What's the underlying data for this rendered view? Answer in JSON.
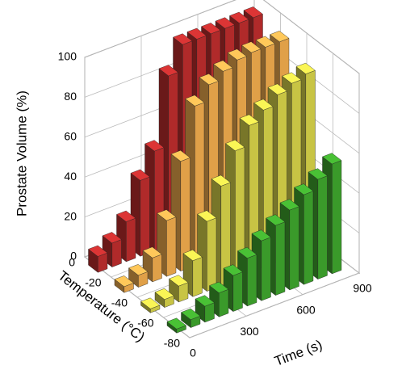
{
  "chart_data": {
    "type": "bar3d",
    "x_label": "Time (s)",
    "y_label": "Temperature (°C)",
    "z_label": "Prostate Volume (%)",
    "x": [
      0,
      75,
      150,
      225,
      300,
      375,
      450,
      525,
      600,
      675,
      750,
      825
    ],
    "series": [
      {
        "temperature": -10,
        "color": "#b02a2a",
        "values": [
          8,
          12,
          20,
          38,
          50,
          85,
          98,
          98,
          98,
          98,
          98,
          98
        ]
      },
      {
        "temperature": -30,
        "color": "#e0a048",
        "values": [
          3,
          6,
          12,
          28,
          55,
          80,
          88,
          92,
          95,
          96,
          96,
          96
        ]
      },
      {
        "temperature": -50,
        "color": "#c8c444",
        "values": [
          2,
          4,
          8,
          18,
          35,
          50,
          65,
          75,
          80,
          85,
          88,
          90
        ]
      },
      {
        "temperature": -70,
        "color": "#3a9a2a",
        "values": [
          2,
          4,
          8,
          12,
          18,
          24,
          30,
          35,
          40,
          45,
          50,
          55
        ]
      }
    ],
    "xlim": [
      0,
      900
    ],
    "xticks": [
      0,
      300,
      600,
      900
    ],
    "ylim": [
      -80,
      0
    ],
    "yticks": [
      0,
      -20,
      -40,
      -60,
      -80
    ],
    "zlim": [
      0,
      100
    ],
    "zticks": [
      0,
      20,
      40,
      60,
      80,
      100
    ],
    "grid": true
  }
}
